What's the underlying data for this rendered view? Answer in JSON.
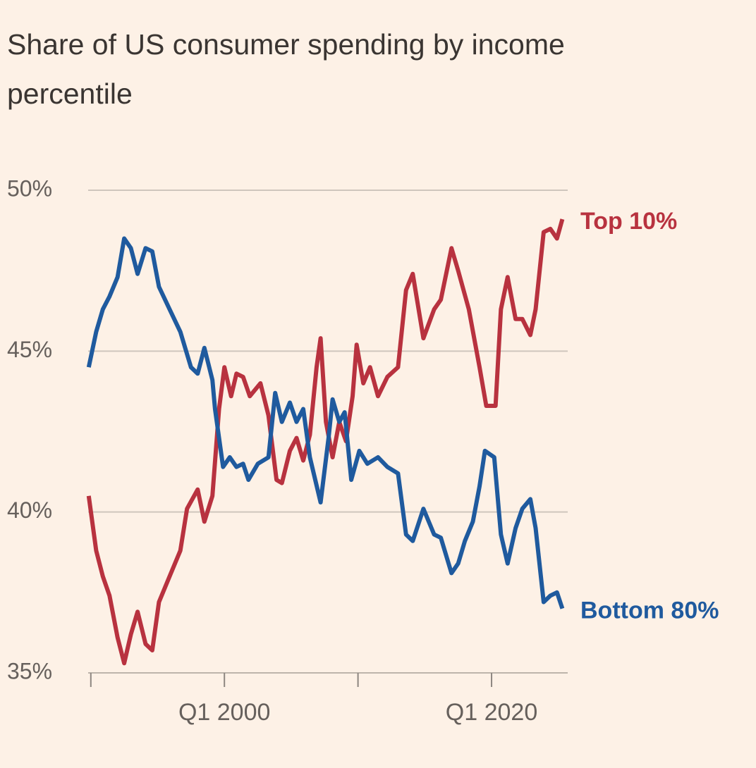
{
  "chart_data": {
    "type": "line",
    "title": "Share of US consumer spending by income percentile",
    "xlim": [
      1989.8,
      2025.7
    ],
    "xticks": [
      {
        "value": 1990,
        "label": null
      },
      {
        "value": 2000,
        "label": "Q1 2000"
      },
      {
        "value": 2010,
        "label": null
      },
      {
        "value": 2020,
        "label": "Q1 2020"
      }
    ],
    "ylim": [
      35,
      50
    ],
    "yticks": [
      {
        "value": 35,
        "label": "35%"
      },
      {
        "value": 40,
        "label": "40%"
      },
      {
        "value": 45,
        "label": "45%"
      },
      {
        "value": 50,
        "label": "50%"
      }
    ],
    "grid": true,
    "series": [
      {
        "name": "Top 10%",
        "color": "#b8323f",
        "x": [
          1989.84,
          1990.4,
          1990.9,
          1991.4,
          1992.0,
          1992.5,
          1993.0,
          1993.5,
          1994.1,
          1994.6,
          1995.1,
          1995.9,
          1996.7,
          1997.2,
          1998.0,
          1998.5,
          1999.1,
          1999.6,
          2000.0,
          2000.5,
          2000.9,
          2001.4,
          2001.9,
          2002.7,
          2003.3,
          2003.9,
          2004.3,
          2004.9,
          2005.4,
          2005.9,
          2006.4,
          2006.9,
          2007.2,
          2007.6,
          2008.1,
          2008.6,
          2009.1,
          2009.6,
          2009.9,
          2010.4,
          2010.9,
          2011.5,
          2012.2,
          2013.0,
          2013.6,
          2014.1,
          2014.9,
          2015.7,
          2016.2,
          2017.0,
          2017.5,
          2018.3,
          2019.1,
          2019.6,
          2020.3,
          2020.7,
          2021.2,
          2021.8,
          2022.3,
          2022.9,
          2023.3,
          2023.9,
          2024.4,
          2024.9,
          2025.3
        ],
        "values": [
          40.5,
          38.8,
          38.0,
          37.4,
          36.1,
          35.3,
          36.2,
          36.9,
          35.9,
          35.7,
          37.2,
          38.0,
          38.8,
          40.1,
          40.7,
          39.7,
          40.5,
          43.2,
          44.5,
          43.6,
          44.3,
          44.2,
          43.6,
          44.0,
          43.0,
          41.0,
          40.9,
          41.9,
          42.3,
          41.6,
          42.4,
          44.5,
          45.4,
          42.8,
          41.7,
          42.8,
          42.2,
          43.6,
          45.2,
          44.0,
          44.5,
          43.6,
          44.2,
          44.5,
          46.9,
          47.4,
          45.4,
          46.3,
          46.6,
          48.2,
          47.5,
          46.3,
          44.5,
          43.3,
          43.3,
          46.3,
          47.3,
          46.0,
          46.0,
          45.5,
          46.3,
          48.7,
          48.8,
          48.5,
          49.1
        ]
      },
      {
        "name": "Bottom 80%",
        "color": "#1f5a9e",
        "x": [
          1989.84,
          1990.4,
          1990.9,
          1991.4,
          1992.0,
          1992.5,
          1993.0,
          1993.5,
          1994.1,
          1994.6,
          1995.1,
          1995.9,
          1996.7,
          1997.5,
          1998.0,
          1998.5,
          1999.1,
          1999.3,
          1999.9,
          2000.4,
          2000.9,
          2001.4,
          2001.8,
          2002.5,
          2003.3,
          2003.8,
          2004.3,
          2004.9,
          2005.4,
          2005.9,
          2006.4,
          2007.2,
          2007.8,
          2008.1,
          2008.6,
          2009.0,
          2009.5,
          2010.1,
          2010.7,
          2011.5,
          2012.2,
          2013.0,
          2013.6,
          2014.1,
          2014.9,
          2015.7,
          2016.2,
          2017.0,
          2017.5,
          2018.0,
          2018.6,
          2019.1,
          2019.5,
          2020.2,
          2020.7,
          2021.2,
          2021.8,
          2022.3,
          2022.9,
          2023.3,
          2023.9,
          2024.4,
          2024.9,
          2025.3
        ],
        "values": [
          44.5,
          45.6,
          46.3,
          46.7,
          47.3,
          48.5,
          48.2,
          47.4,
          48.2,
          48.1,
          47.0,
          46.3,
          45.6,
          44.5,
          44.3,
          45.1,
          44.1,
          43.2,
          41.4,
          41.7,
          41.4,
          41.5,
          41.0,
          41.5,
          41.7,
          43.7,
          42.8,
          43.4,
          42.8,
          43.2,
          41.7,
          40.3,
          42.3,
          43.5,
          42.8,
          43.1,
          41.0,
          41.9,
          41.5,
          41.7,
          41.4,
          41.2,
          39.3,
          39.1,
          40.1,
          39.3,
          39.2,
          38.1,
          38.4,
          39.1,
          39.7,
          40.8,
          41.9,
          41.7,
          39.3,
          38.4,
          39.5,
          40.1,
          40.4,
          39.5,
          37.2,
          37.4,
          37.5,
          37.0
        ]
      }
    ]
  }
}
